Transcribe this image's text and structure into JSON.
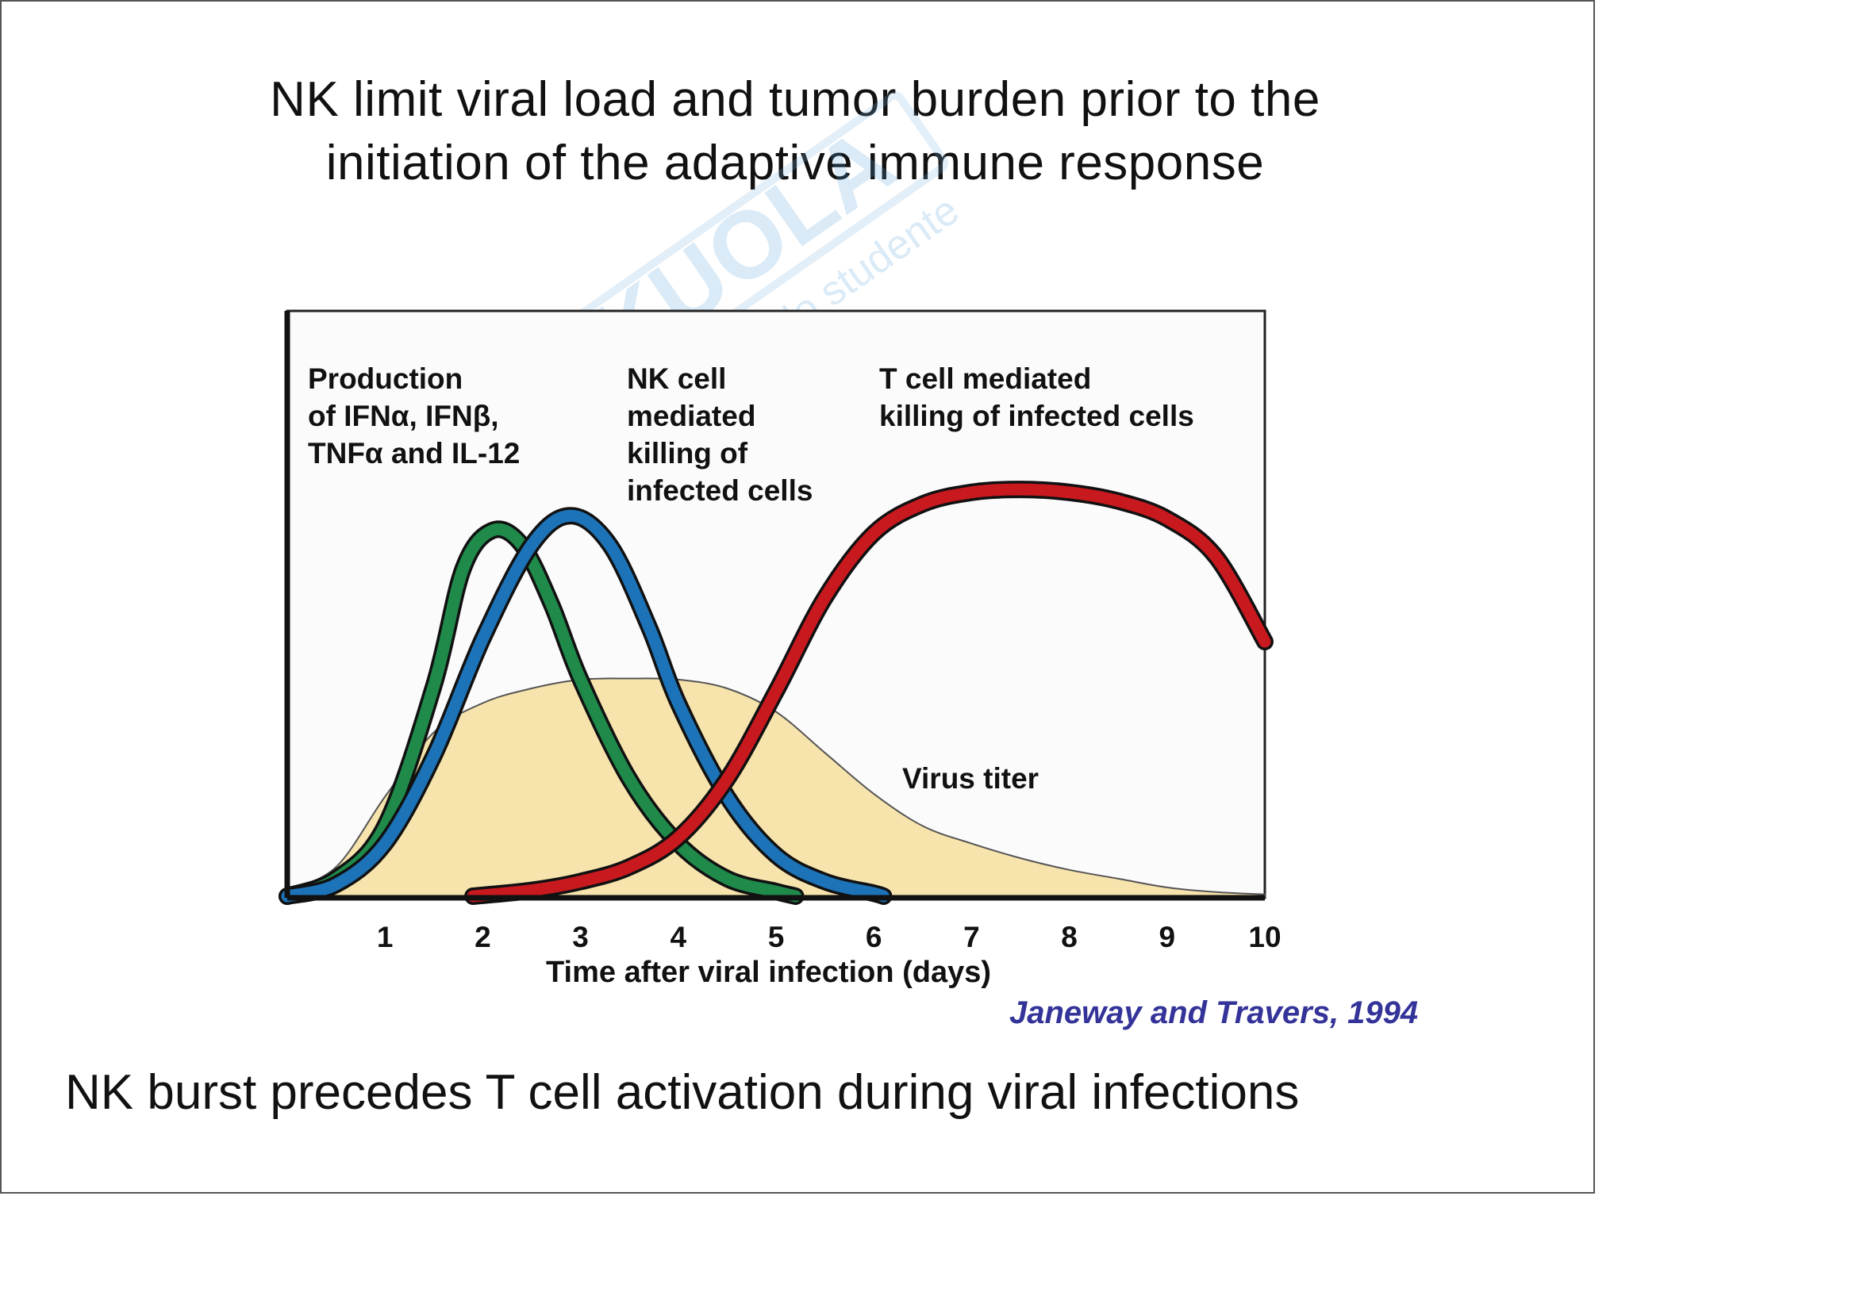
{
  "slide": {
    "title_line_1": "NK limit viral load and tumor burden prior to the",
    "title_line_2": "initiation of the adaptive immune response",
    "bottom_caption": "NK burst precedes T cell activation during viral infections",
    "citation": "Janeway and Travers, 1994",
    "watermark": {
      "brand": "SKUOLA",
      "tagline": "il paradiso dello studente"
    }
  },
  "chart_data": {
    "type": "line",
    "xlabel": "Time after viral infection (days)",
    "ylabel": "",
    "xlim": [
      0,
      10
    ],
    "ylim": [
      0,
      1
    ],
    "x_ticks": [
      "1",
      "2",
      "3",
      "4",
      "5",
      "6",
      "7",
      "8",
      "9",
      "10"
    ],
    "grid": false,
    "annotations": {
      "ifn": "Production\nof IFNα, IFNβ,\nTNFα and IL-12",
      "nk": "NK cell\nmediated\nkilling of\ninfected cells",
      "t": "T cell mediated\nkilling of infected cells",
      "virus": "Virus titer"
    },
    "series": [
      {
        "key": "virus",
        "style": "area",
        "color": "#f7e4ad",
        "points": [
          [
            0,
            0.01
          ],
          [
            0.5,
            0.05
          ],
          [
            1,
            0.17
          ],
          [
            1.5,
            0.28
          ],
          [
            2,
            0.33
          ],
          [
            2.5,
            0.355
          ],
          [
            3,
            0.37
          ],
          [
            3.5,
            0.372
          ],
          [
            4,
            0.37
          ],
          [
            4.5,
            0.355
          ],
          [
            5,
            0.315
          ],
          [
            5.5,
            0.245
          ],
          [
            6,
            0.175
          ],
          [
            6.5,
            0.12
          ],
          [
            7,
            0.09
          ],
          [
            7.5,
            0.065
          ],
          [
            8,
            0.045
          ],
          [
            8.5,
            0.03
          ],
          [
            9,
            0.015
          ],
          [
            9.5,
            0.007
          ],
          [
            10,
            0.003
          ]
        ]
      },
      {
        "key": "ifn",
        "style": "line",
        "color": "#1f8a4a",
        "points": [
          [
            0,
            0.0
          ],
          [
            0.5,
            0.03
          ],
          [
            1,
            0.12
          ],
          [
            1.5,
            0.36
          ],
          [
            1.8,
            0.56
          ],
          [
            2.1,
            0.625
          ],
          [
            2.4,
            0.6
          ],
          [
            2.7,
            0.5
          ],
          [
            3,
            0.37
          ],
          [
            3.5,
            0.2
          ],
          [
            4,
            0.09
          ],
          [
            4.5,
            0.03
          ],
          [
            5,
            0.008
          ],
          [
            5.2,
            0.0
          ]
        ]
      },
      {
        "key": "nk",
        "style": "line",
        "color": "#1d73b8",
        "points": [
          [
            0,
            0.0
          ],
          [
            0.5,
            0.02
          ],
          [
            1,
            0.09
          ],
          [
            1.5,
            0.24
          ],
          [
            2,
            0.44
          ],
          [
            2.5,
            0.6
          ],
          [
            2.9,
            0.65
          ],
          [
            3.3,
            0.6
          ],
          [
            3.7,
            0.46
          ],
          [
            4,
            0.33
          ],
          [
            4.5,
            0.17
          ],
          [
            5,
            0.07
          ],
          [
            5.5,
            0.025
          ],
          [
            6,
            0.005
          ],
          [
            6.1,
            0.0
          ]
        ]
      },
      {
        "key": "t",
        "style": "line",
        "color": "#c8191f",
        "points": [
          [
            1.9,
            0.0
          ],
          [
            2.5,
            0.01
          ],
          [
            3,
            0.025
          ],
          [
            3.5,
            0.05
          ],
          [
            4,
            0.1
          ],
          [
            4.5,
            0.2
          ],
          [
            5,
            0.35
          ],
          [
            5.5,
            0.51
          ],
          [
            6,
            0.62
          ],
          [
            6.5,
            0.67
          ],
          [
            7,
            0.69
          ],
          [
            7.5,
            0.695
          ],
          [
            8,
            0.69
          ],
          [
            8.5,
            0.675
          ],
          [
            9,
            0.645
          ],
          [
            9.5,
            0.58
          ],
          [
            10,
            0.435
          ]
        ]
      }
    ]
  }
}
